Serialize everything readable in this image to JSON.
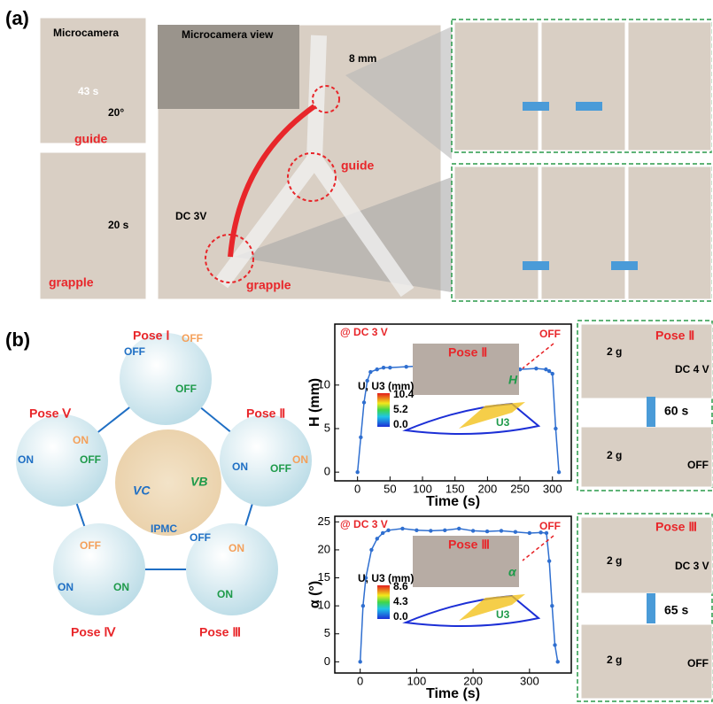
{
  "panel_a": {
    "label": "(a)",
    "texts": [
      "Microcamera",
      "43 s",
      "20°",
      "guide",
      "20 s",
      "grapple",
      "Microcamera view",
      "8 mm",
      "guide",
      "DC 3V",
      "grapple"
    ]
  },
  "panel_b": {
    "label": "(b)",
    "poses": [
      "Pose Ⅰ",
      "Pose Ⅱ",
      "Pose Ⅲ",
      "Pose Ⅳ",
      "Pose Ⅴ"
    ],
    "states": [
      "OFF",
      "OFF",
      "OFF",
      "ON",
      "ON",
      "OFF",
      "OFF",
      "ON",
      "ON",
      "OFF",
      "ON",
      "ON",
      "ON",
      "ON",
      "OFF"
    ],
    "center": [
      "VC",
      "VB",
      "IPMC"
    ],
    "photos_top": [
      "Pose Ⅱ",
      "2 g",
      "DC 4 V",
      "60 s",
      "2 g",
      "OFF"
    ],
    "photos_bottom": [
      "Pose Ⅲ",
      "2 g",
      "DC 3 V",
      "65 s",
      "2 g",
      "OFF"
    ]
  },
  "chart_data": [
    {
      "type": "line",
      "x_label": "Time (s)",
      "y_label": "H (mm)",
      "color": "#2f6fd0",
      "annotations": [
        "@ DC 3 V",
        "OFF",
        "Pose Ⅱ",
        "H",
        "U3"
      ],
      "colorbar": {
        "title": "U, U3 (mm)",
        "labels": [
          "10.4",
          "5.2",
          "0.0"
        ]
      },
      "x": [
        0,
        5,
        10,
        15,
        20,
        30,
        40,
        50,
        75,
        100,
        125,
        150,
        175,
        200,
        225,
        250,
        275,
        290,
        295,
        300,
        305,
        310
      ],
      "values": [
        0,
        4,
        8,
        10.5,
        11.5,
        11.8,
        12,
        12,
        12.1,
        12.2,
        12,
        12,
        11.9,
        11.8,
        11.8,
        11.8,
        11.9,
        11.8,
        11.6,
        11.3,
        5,
        0
      ],
      "xlim": [
        -35,
        329
      ],
      "ylim": [
        -1,
        17
      ],
      "xticks": [
        0,
        50,
        100,
        150,
        200,
        250,
        300
      ],
      "yticks": [
        0,
        5,
        10
      ]
    },
    {
      "type": "line",
      "x_label": "Time (s)",
      "y_label": "α (°)",
      "color": "#2f6fd0",
      "annotations": [
        "@ DC 3 V",
        "OFF",
        "Pose Ⅲ",
        "α",
        "U3"
      ],
      "colorbar": {
        "title": "U, U3 (mm)",
        "labels": [
          "8.6",
          "4.3",
          "0.0"
        ]
      },
      "x": [
        0,
        5,
        10,
        20,
        30,
        40,
        50,
        75,
        100,
        125,
        150,
        175,
        200,
        225,
        250,
        275,
        300,
        320,
        330,
        335,
        340,
        345,
        350
      ],
      "values": [
        0,
        10,
        15,
        20,
        22,
        23,
        23.5,
        23.8,
        23.5,
        23.4,
        23.5,
        23.8,
        23.4,
        23.3,
        23.4,
        23.2,
        23,
        23.1,
        23,
        18,
        10,
        3,
        0
      ],
      "xlim": [
        -45,
        374
      ],
      "ylim": [
        -2,
        26
      ],
      "xticks": [
        0,
        100,
        200,
        300
      ],
      "yticks": [
        0,
        5,
        10,
        15,
        20,
        25
      ]
    }
  ]
}
